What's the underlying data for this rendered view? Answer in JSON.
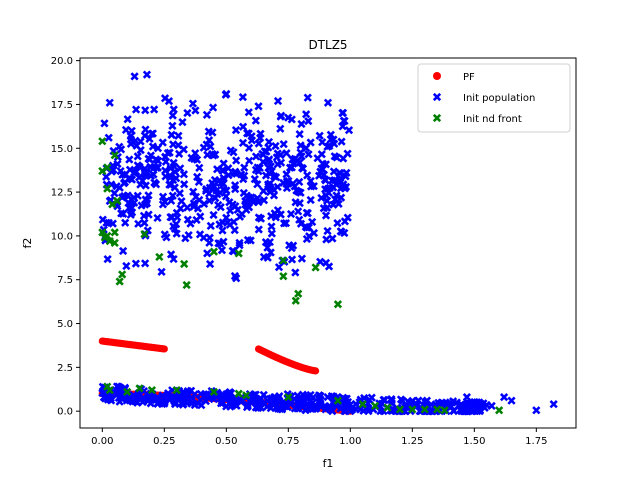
{
  "chart_data": {
    "type": "scatter",
    "title": "DTLZ5",
    "xlabel": "f1",
    "ylabel": "f2",
    "xlim": [
      -0.09,
      1.91
    ],
    "ylim": [
      -0.96,
      20.15
    ],
    "xticks": [
      "0.00",
      "0.25",
      "0.50",
      "0.75",
      "1.00",
      "1.25",
      "1.50",
      "1.75"
    ],
    "xtick_values": [
      0,
      0.25,
      0.5,
      0.75,
      1.0,
      1.25,
      1.5,
      1.75
    ],
    "yticks": [
      "0.0",
      "2.5",
      "5.0",
      "7.5",
      "10.0",
      "12.5",
      "15.0",
      "17.5",
      "20.0"
    ],
    "ytick_values": [
      0,
      2.5,
      5,
      7.5,
      10,
      12.5,
      15,
      17.5,
      20
    ],
    "grid": false,
    "legend_position": "top-right",
    "series": [
      {
        "name": "PF",
        "marker": "circle",
        "color": "#ff0000",
        "segments": [
          {
            "x_range": [
              0.0,
              1.0
            ],
            "y_range": [
              1.0,
              0.0
            ],
            "count": 160,
            "note_shape": "flat-then-drop"
          },
          {
            "x_range": [
              0.0,
              0.25
            ],
            "y_range": [
              4.0,
              3.55
            ],
            "count": 45
          },
          {
            "x_range": [
              0.63,
              0.86
            ],
            "y_range": [
              3.55,
              2.3
            ],
            "count": 45
          }
        ]
      },
      {
        "name": "Init population",
        "marker": "x",
        "color": "#0000ff",
        "clusters": [
          {
            "x_range": [
              0.0,
              1.0
            ],
            "y_range": [
              7.0,
              19.3
            ],
            "count": 520
          },
          {
            "x_range": [
              0.0,
              1.82
            ],
            "y_range": [
              0.0,
              1.8
            ],
            "count": 420
          }
        ]
      },
      {
        "name": "Init nd front",
        "marker": "x",
        "color": "#008000",
        "points": [
          [
            0.0,
            15.4
          ],
          [
            0.02,
            13.9
          ],
          [
            0.0,
            13.7
          ],
          [
            0.05,
            14.6
          ],
          [
            0.02,
            12.7
          ],
          [
            0.04,
            11.8
          ],
          [
            0.06,
            12.0
          ],
          [
            0.0,
            10.2
          ],
          [
            0.01,
            9.9
          ],
          [
            0.02,
            10.0
          ],
          [
            0.03,
            9.7
          ],
          [
            0.05,
            9.6
          ],
          [
            0.05,
            10.2
          ],
          [
            0.07,
            7.4
          ],
          [
            0.08,
            7.8
          ],
          [
            0.17,
            10.1
          ],
          [
            0.23,
            8.8
          ],
          [
            0.33,
            8.4
          ],
          [
            0.34,
            7.2
          ],
          [
            0.45,
            9.1
          ],
          [
            0.55,
            9.0
          ],
          [
            0.73,
            8.6
          ],
          [
            0.73,
            7.7
          ],
          [
            0.78,
            6.3
          ],
          [
            0.79,
            6.7
          ],
          [
            0.86,
            8.2
          ],
          [
            0.95,
            6.1
          ],
          [
            0.02,
            1.4
          ],
          [
            0.03,
            1.2
          ],
          [
            0.1,
            1.1
          ],
          [
            0.15,
            1.3
          ],
          [
            0.2,
            1.2
          ],
          [
            0.3,
            1.2
          ],
          [
            0.45,
            1.1
          ],
          [
            0.55,
            1.0
          ],
          [
            0.58,
            0.9
          ],
          [
            0.75,
            0.8
          ],
          [
            0.95,
            0.6
          ],
          [
            1.05,
            0.4
          ],
          [
            1.1,
            0.3
          ],
          [
            1.15,
            0.2
          ],
          [
            1.2,
            0.1
          ],
          [
            1.25,
            0.1
          ],
          [
            1.3,
            0.1
          ],
          [
            1.35,
            0.1
          ],
          [
            1.38,
            0.05
          ],
          [
            1.6,
            0.05
          ]
        ]
      }
    ]
  }
}
